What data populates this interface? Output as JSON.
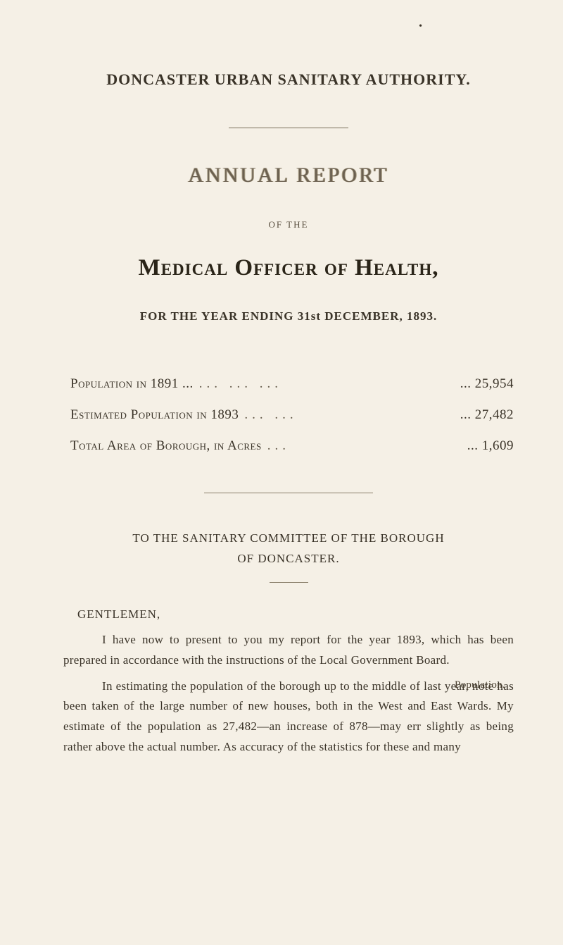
{
  "colors": {
    "background": "#f5f0e6",
    "text_primary": "#3a3328",
    "text_faded": "#6b6050",
    "rule": "#8a7f6a"
  },
  "typography": {
    "body_font": "Georgia, 'Times New Roman', serif",
    "title_main_size": 22,
    "ornate_size": 30,
    "medical_size": 33,
    "body_size": 17
  },
  "header": {
    "authority": "DONCASTER URBAN SANITARY AUTHORITY.",
    "ornate": "ANNUAL REPORT",
    "of_the": "OF THE",
    "officer": "Medical Officer of Health,",
    "year_line": "FOR THE YEAR ENDING 31st DECEMBER, 1893."
  },
  "stats": [
    {
      "label": "Population in 1891 ...",
      "dots": "...   ...   ...",
      "value": "... 25,954"
    },
    {
      "label": "Estimated Population in 1893",
      "dots": "...   ...",
      "value": "... 27,482"
    },
    {
      "label": "Total Area of Borough, in Acres",
      "dots": "...",
      "value": "...  1,609"
    }
  ],
  "committee": {
    "line1": "TO THE SANITARY COMMITTEE OF THE BOROUGH",
    "line2": "OF DONCASTER."
  },
  "letter": {
    "salutation": "GENTLEMEN,",
    "para1": "I have now to present to you my report for the year 1893, which has been prepared in accordance with the instruc­tions of the Local Government Board.",
    "para2": "In estimating the population of the borough up to the middle of last year, note has been taken of the large number of new houses, both in the West and East Wards. My estimate of the population as 27,482—an increase of 878—may err slightly as being rather above the actual number. As accuracy of the statistics for these and many"
  },
  "margin_note": "Population."
}
